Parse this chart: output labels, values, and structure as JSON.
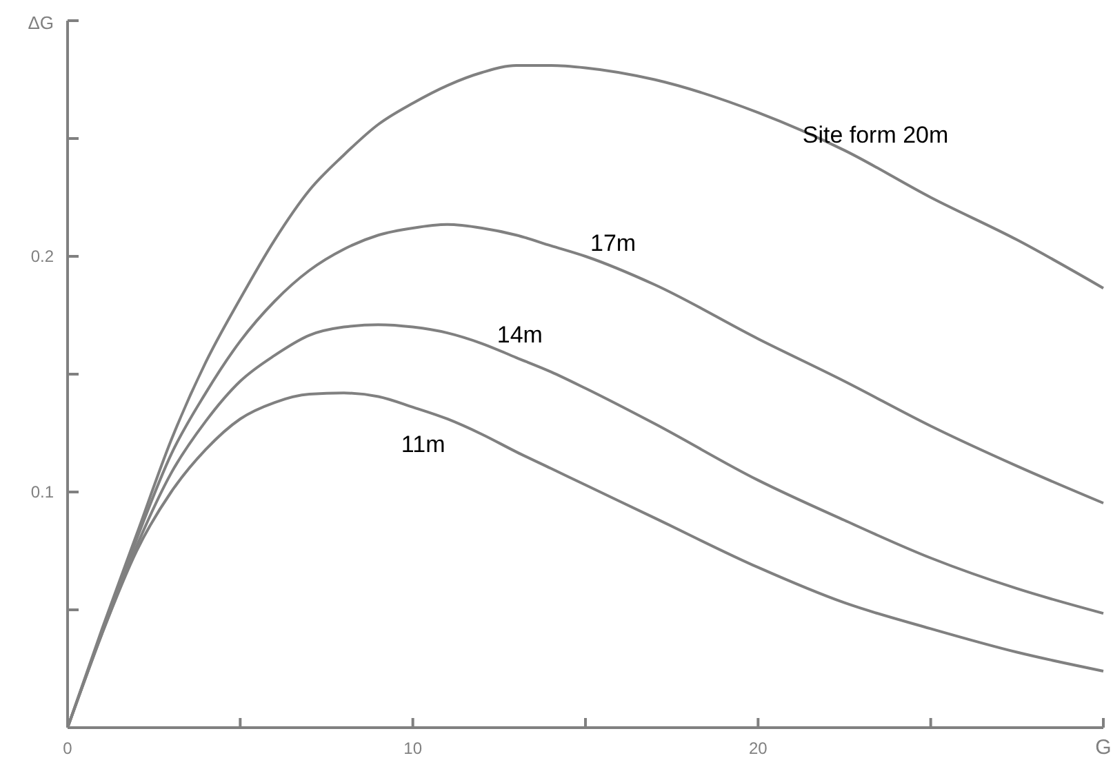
{
  "chart_data": {
    "type": "line",
    "xlabel": "G",
    "ylabel": "ΔG",
    "x": [
      0,
      1,
      2,
      3,
      4,
      5,
      6,
      7,
      8,
      9,
      10,
      11,
      12,
      13,
      14,
      15,
      17,
      20,
      22.5,
      25,
      27.5,
      30
    ],
    "series": [
      {
        "name": "Site form 20m",
        "color": "#808080",
        "values": [
          0,
          0.042,
          0.082,
          0.122,
          0.155,
          0.182,
          0.207,
          0.228,
          0.243,
          0.256,
          0.265,
          0.2725,
          0.278,
          0.281,
          0.281,
          0.28,
          0.275,
          0.261,
          0.245,
          0.225,
          0.207,
          0.1865
        ]
      },
      {
        "name": "17m",
        "color": "#808080",
        "values": [
          0,
          0.041,
          0.08,
          0.116,
          0.142,
          0.164,
          0.181,
          0.194,
          0.203,
          0.209,
          0.212,
          0.2135,
          0.212,
          0.209,
          0.2045,
          0.2,
          0.188,
          0.165,
          0.147,
          0.128,
          0.111,
          0.0953
        ]
      },
      {
        "name": "14m",
        "color": "#808080",
        "values": [
          0,
          0.04,
          0.077,
          0.108,
          0.13,
          0.147,
          0.158,
          0.1665,
          0.17,
          0.171,
          0.17,
          0.1675,
          0.163,
          0.157,
          0.151,
          0.144,
          0.129,
          0.105,
          0.088,
          0.072,
          0.059,
          0.0485
        ]
      },
      {
        "name": "11m",
        "color": "#808080",
        "values": [
          0,
          0.04,
          0.075,
          0.1,
          0.118,
          0.131,
          0.138,
          0.1415,
          0.142,
          0.1405,
          0.136,
          0.131,
          0.1245,
          0.117,
          0.11,
          0.103,
          0.089,
          0.068,
          0.053,
          0.042,
          0.032,
          0.024
        ]
      }
    ],
    "xlim": [
      0,
      30
    ],
    "ylim": [
      0,
      0.3
    ],
    "xticks": [
      0,
      {
        "value": 5,
        "label": null
      },
      10,
      {
        "value": 15,
        "label": null
      },
      20,
      {
        "value": 25,
        "label": null
      },
      {
        "value": 30,
        "label": null
      }
    ],
    "yticks": [
      {
        "value": 0,
        "label": null
      },
      {
        "value": 0.05,
        "label": null
      },
      0.1,
      {
        "value": 0.15,
        "label": null
      },
      0.2,
      {
        "value": 0.25,
        "label": null
      },
      {
        "value": 0.3,
        "label": null
      }
    ],
    "grid": false,
    "legend": false,
    "marker": "none",
    "line_style": "solid"
  }
}
